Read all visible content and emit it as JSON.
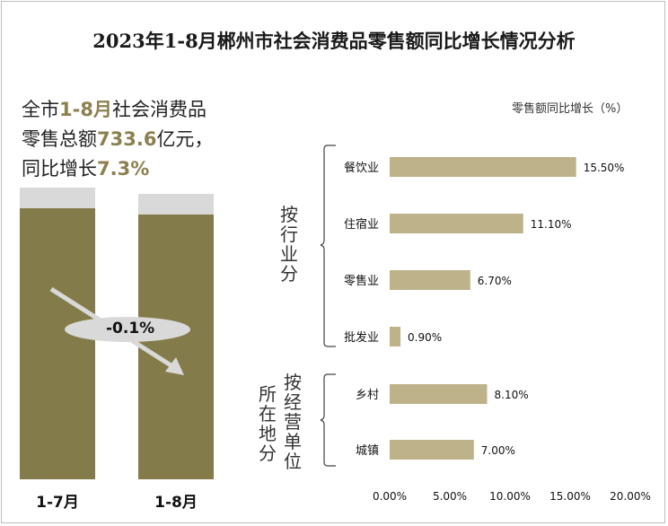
{
  "title": "2023年1-8月郴州市社会消费品零售额同比增长情况分析",
  "summary": {
    "part1": "全市",
    "period": "1-8月",
    "part2": "社会消费品",
    "part3": "零售总额",
    "total": "733.6",
    "part4": "亿元，",
    "part5": "同比增长",
    "growth": "7.3%"
  },
  "left_chart": {
    "categories": [
      "1-7月",
      "1-8月"
    ],
    "change_label": "-0.1%"
  },
  "group_labels": {
    "industry": "按行业分",
    "location_left": "所在地分",
    "location_right": "按经营单位"
  },
  "chart_data": {
    "type": "bar",
    "orientation": "horizontal",
    "title": "零售额同比增长（%）",
    "categories": [
      "餐饮业",
      "住宿业",
      "零售业",
      "批发业",
      "乡村",
      "城镇"
    ],
    "values": [
      15.5,
      11.1,
      6.7,
      0.9,
      8.1,
      7.0
    ],
    "value_labels": [
      "15.50%",
      "11.10%",
      "6.70%",
      "0.90%",
      "8.10%",
      "7.00%"
    ],
    "xlim": [
      0,
      20
    ],
    "xticks": [
      "0.00%",
      "5.00%",
      "10.00%",
      "15.00%",
      "20.00%"
    ],
    "xtick_values": [
      0,
      5,
      10,
      15,
      20
    ],
    "bar_color": "#bdb289",
    "grid": false
  }
}
